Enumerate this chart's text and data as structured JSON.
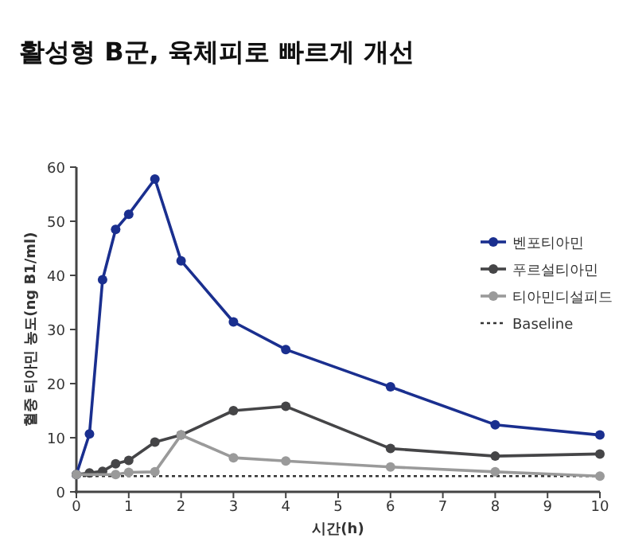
{
  "chart_data": {
    "type": "line",
    "title": "활성형 B군, 육체피로 빠르게 개선",
    "xlabel": "시간(h)",
    "ylabel": "혈중 티아민 농도(ng B1/ml)",
    "xlim": [
      0,
      10
    ],
    "xticks": [
      0,
      1,
      2,
      3,
      4,
      5,
      6,
      7,
      8,
      9,
      10
    ],
    "ylim": [
      0,
      60
    ],
    "yticks": [
      0,
      10,
      20,
      30,
      40,
      50,
      60
    ],
    "marker": "circle",
    "line_style": "solid",
    "legend": "top right",
    "grid": false,
    "series": [
      {
        "name": "벤포티아민",
        "color": "#1a2f8f",
        "x": [
          0,
          0.25,
          0.5,
          0.75,
          1,
          1.5,
          2,
          3,
          4,
          6,
          8,
          10
        ],
        "values": [
          3.2,
          10.7,
          39.2,
          48.5,
          51.3,
          57.8,
          42.7,
          31.4,
          26.3,
          19.4,
          12.4,
          10.5
        ]
      },
      {
        "name": "푸르설티아민",
        "color": "#454547",
        "x": [
          0,
          0.25,
          0.5,
          0.75,
          1,
          1.5,
          2,
          3,
          4,
          6,
          8,
          10
        ],
        "values": [
          3.2,
          3.5,
          3.8,
          5.2,
          5.8,
          9.2,
          10.5,
          15.0,
          15.8,
          8.0,
          6.6,
          7.0
        ]
      },
      {
        "name": "티아민디설피드",
        "color": "#9a9a9a",
        "x": [
          0,
          0.75,
          1,
          1.5,
          2,
          3,
          4,
          6,
          8,
          10
        ],
        "values": [
          3.2,
          3.2,
          3.6,
          3.7,
          10.5,
          6.3,
          5.7,
          4.6,
          3.7,
          2.9
        ]
      }
    ],
    "ref_lines": [
      {
        "axis": "y",
        "value": 2.9,
        "label": "Baseline",
        "color": "#333333",
        "line_style": "dotted"
      }
    ]
  }
}
